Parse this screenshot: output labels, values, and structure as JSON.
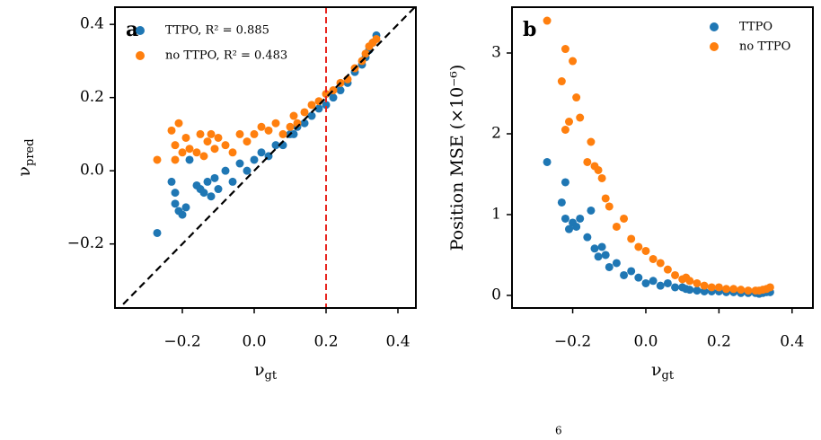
{
  "chart_data": [
    {
      "type": "scatter",
      "panel_label": "a",
      "xlabel": {
        "symbol": "ν",
        "subscript": "gt"
      },
      "ylabel": {
        "symbol": "ν",
        "subscript": "pred"
      },
      "xlim": [
        -0.3875,
        0.45
      ],
      "ylim": [
        -0.375,
        0.447
      ],
      "xticks": [
        {
          "value": -0.2,
          "label": "−0.2"
        },
        {
          "value": 0.0,
          "label": "0.0"
        },
        0.2,
        0.4
      ],
      "yticks": [
        {
          "value": -0.2,
          "label": "−0.2"
        },
        {
          "value": 0.0,
          "label": "0.0"
        },
        0.2,
        0.4
      ],
      "vline": 0.2,
      "vline_color": "#e8251f",
      "diagonal": true,
      "legend": "upper left",
      "series": [
        {
          "name": "TTPO, R² = 0.885",
          "color": "#1f77b4",
          "x": [
            -0.27,
            -0.23,
            -0.22,
            -0.22,
            -0.21,
            -0.2,
            -0.19,
            -0.18,
            -0.16,
            -0.15,
            -0.14,
            -0.13,
            -0.12,
            -0.11,
            -0.1,
            -0.08,
            -0.06,
            -0.04,
            -0.02,
            0.0,
            0.02,
            0.04,
            0.06,
            0.08,
            0.1,
            0.11,
            0.12,
            0.14,
            0.16,
            0.18,
            0.2,
            0.22,
            0.24,
            0.26,
            0.28,
            0.3,
            0.31,
            0.32,
            0.33,
            0.34
          ],
          "values": [
            -0.17,
            -0.03,
            -0.06,
            -0.09,
            -0.11,
            -0.12,
            -0.1,
            0.03,
            -0.04,
            -0.05,
            -0.06,
            -0.03,
            -0.07,
            -0.02,
            -0.05,
            0.0,
            -0.03,
            0.02,
            0.0,
            0.03,
            0.05,
            0.04,
            0.07,
            0.07,
            0.1,
            0.1,
            0.12,
            0.13,
            0.15,
            0.17,
            0.18,
            0.2,
            0.22,
            0.24,
            0.27,
            0.29,
            0.31,
            0.33,
            0.35,
            0.37
          ]
        },
        {
          "name": "no TTPO, R² = 0.483",
          "color": "#ff7f0e",
          "x": [
            -0.27,
            -0.23,
            -0.22,
            -0.22,
            -0.21,
            -0.2,
            -0.19,
            -0.18,
            -0.16,
            -0.15,
            -0.14,
            -0.13,
            -0.12,
            -0.11,
            -0.1,
            -0.08,
            -0.06,
            -0.04,
            -0.02,
            0.0,
            0.02,
            0.04,
            0.06,
            0.08,
            0.1,
            0.11,
            0.12,
            0.14,
            0.16,
            0.18,
            0.2,
            0.22,
            0.24,
            0.26,
            0.28,
            0.3,
            0.31,
            0.32,
            0.33,
            0.34
          ],
          "values": [
            0.03,
            0.11,
            0.07,
            0.03,
            0.13,
            0.05,
            0.09,
            0.06,
            0.05,
            0.1,
            0.04,
            0.08,
            0.1,
            0.06,
            0.09,
            0.07,
            0.05,
            0.1,
            0.08,
            0.1,
            0.12,
            0.11,
            0.13,
            0.1,
            0.12,
            0.15,
            0.13,
            0.16,
            0.18,
            0.19,
            0.21,
            0.22,
            0.24,
            0.25,
            0.28,
            0.3,
            0.32,
            0.34,
            0.35,
            0.36
          ]
        }
      ]
    },
    {
      "type": "scatter",
      "panel_label": "b",
      "xlabel": {
        "symbol": "ν",
        "subscript": "gt"
      },
      "ylabel": {
        "symbol": "Position MSE (×10⁻⁶)",
        "subscript": ""
      },
      "xlim": [
        -0.366,
        0.457
      ],
      "ylim": [
        -0.156,
        3.567
      ],
      "xticks": [
        {
          "value": -0.2,
          "label": "−0.2"
        },
        {
          "value": 0.0,
          "label": "0.0"
        },
        0.2,
        0.4
      ],
      "yticks": [
        0,
        1,
        2,
        3
      ],
      "legend": "upper right",
      "series": [
        {
          "name": "TTPO",
          "color": "#1f77b4",
          "x": [
            -0.27,
            -0.23,
            -0.22,
            -0.22,
            -0.21,
            -0.2,
            -0.19,
            -0.18,
            -0.16,
            -0.15,
            -0.14,
            -0.13,
            -0.12,
            -0.11,
            -0.1,
            -0.08,
            -0.06,
            -0.04,
            -0.02,
            0.0,
            0.02,
            0.04,
            0.06,
            0.08,
            0.1,
            0.11,
            0.12,
            0.14,
            0.16,
            0.18,
            0.2,
            0.22,
            0.24,
            0.26,
            0.28,
            0.3,
            0.31,
            0.32,
            0.33,
            0.34
          ],
          "values": [
            1.65,
            1.15,
            1.4,
            0.95,
            0.82,
            0.9,
            0.85,
            0.95,
            0.72,
            1.05,
            0.58,
            0.48,
            0.6,
            0.5,
            0.35,
            0.4,
            0.25,
            0.3,
            0.22,
            0.15,
            0.18,
            0.12,
            0.15,
            0.1,
            0.1,
            0.08,
            0.07,
            0.06,
            0.05,
            0.05,
            0.05,
            0.04,
            0.04,
            0.03,
            0.03,
            0.03,
            0.02,
            0.03,
            0.04,
            0.04
          ]
        },
        {
          "name": "no TTPO",
          "color": "#ff7f0e",
          "x": [
            -0.27,
            -0.23,
            -0.22,
            -0.22,
            -0.21,
            -0.2,
            -0.19,
            -0.18,
            -0.16,
            -0.15,
            -0.14,
            -0.13,
            -0.12,
            -0.11,
            -0.1,
            -0.08,
            -0.06,
            -0.04,
            -0.02,
            0.0,
            0.02,
            0.04,
            0.06,
            0.08,
            0.1,
            0.11,
            0.12,
            0.14,
            0.16,
            0.18,
            0.2,
            0.22,
            0.24,
            0.26,
            0.28,
            0.3,
            0.31,
            0.32,
            0.33,
            0.34
          ],
          "values": [
            3.4,
            2.65,
            2.05,
            3.05,
            2.15,
            2.9,
            2.45,
            2.2,
            1.65,
            1.9,
            1.6,
            1.55,
            1.45,
            1.2,
            1.1,
            0.85,
            0.95,
            0.7,
            0.6,
            0.55,
            0.45,
            0.4,
            0.32,
            0.25,
            0.2,
            0.22,
            0.18,
            0.15,
            0.12,
            0.1,
            0.1,
            0.08,
            0.08,
            0.07,
            0.06,
            0.06,
            0.06,
            0.07,
            0.08,
            0.1
          ]
        }
      ]
    }
  ],
  "extra_text": "6"
}
